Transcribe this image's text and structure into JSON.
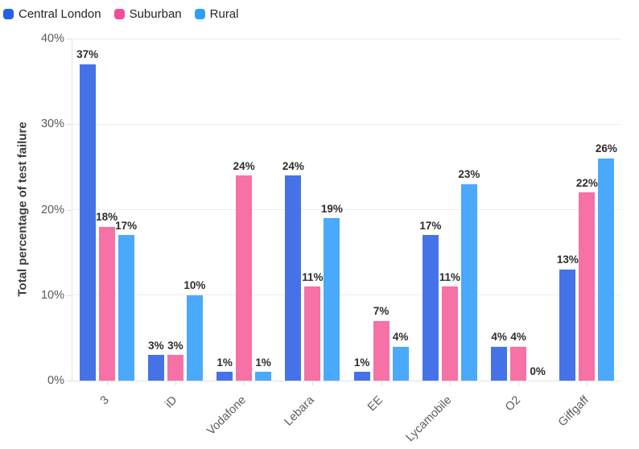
{
  "chart_data": {
    "type": "bar",
    "title": "",
    "xlabel": "",
    "ylabel": "Total percentage of test failure",
    "categories": [
      "3",
      "iD",
      "Vodafone",
      "Lebara",
      "EE",
      "Lycamobile",
      "O2",
      "Giffgaff"
    ],
    "series": [
      {
        "name": "Central London",
        "bar_color": "#4573E7",
        "legend_color": "#2560EB",
        "values": [
          37,
          3,
          1,
          24,
          1,
          17,
          4,
          13
        ]
      },
      {
        "name": "Suburban",
        "bar_color": "#F671A5",
        "legend_color": "#F04D9B",
        "values": [
          18,
          3,
          24,
          11,
          7,
          11,
          4,
          22
        ]
      },
      {
        "name": "Rural",
        "bar_color": "#4BA9FB",
        "legend_color": "#2E9FF8",
        "values": [
          17,
          10,
          1,
          19,
          4,
          23,
          0,
          26
        ]
      }
    ],
    "value_label_suffix": "%",
    "ylim": [
      0,
      40
    ],
    "yticks": [
      0,
      10,
      20,
      30,
      40
    ],
    "ytick_labels": [
      "0%",
      "10%",
      "20%",
      "30%",
      "40%"
    ],
    "grid": "horizontal",
    "legend_position": "top-left",
    "background_color": "#ffffff",
    "gridline_color": "#ededed",
    "tick_label_color": "#5c5c5c",
    "value_label_color": "#2d2d2d"
  }
}
